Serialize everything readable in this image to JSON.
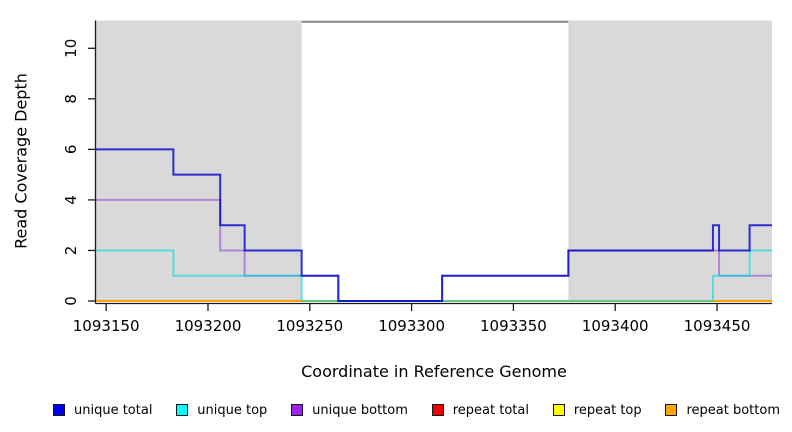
{
  "chart_data": {
    "type": "line",
    "step_interpolation": true,
    "title": "",
    "xlabel": "Coordinate in Reference Genome",
    "ylabel": "Read Coverage Depth",
    "xlim": [
      1093145,
      1093477
    ],
    "ylim": [
      0,
      11.1
    ],
    "xticks": [
      1093150,
      1093200,
      1093250,
      1093300,
      1093350,
      1093400,
      1093450
    ],
    "yticks": [
      0,
      2,
      4,
      6,
      8,
      10
    ],
    "grid": false,
    "legend_position": "bottom",
    "plot_background": "#ffffff",
    "shaded_regions": [
      {
        "name": "left-gray-region",
        "x0": 1093145,
        "x1": 1093246,
        "color": "#d9d9d9"
      },
      {
        "name": "right-gray-region",
        "x0": 1093377,
        "x1": 1093477,
        "color": "#d9d9d9"
      }
    ],
    "top_boundary_line": {
      "x0": 1093246,
      "x1": 1093377,
      "y": 11.05,
      "color": "#8a8a8a"
    },
    "series": [
      {
        "name": "repeat total",
        "line_color": "#dd0000",
        "legend_color": "#ee0000",
        "opacity": 1,
        "step": [
          [
            1093145,
            0
          ],
          [
            1093477,
            0
          ]
        ]
      },
      {
        "name": "repeat top",
        "line_color": "#ffff00",
        "legend_color": "#ffff00",
        "opacity": 1,
        "step": [
          [
            1093145,
            0
          ],
          [
            1093477,
            0
          ]
        ]
      },
      {
        "name": "repeat bottom",
        "line_color": "#ff9f00",
        "legend_color": "#ffa500",
        "opacity": 1,
        "step": [
          [
            1093145,
            0
          ],
          [
            1093477,
            0
          ]
        ]
      },
      {
        "name": "unique bottom",
        "line_color": "#7722cc",
        "legend_color": "#a020f0",
        "opacity": 0.45,
        "step": [
          [
            1093145,
            4
          ],
          [
            1093206,
            2
          ],
          [
            1093218,
            1
          ],
          [
            1093264,
            0
          ],
          [
            1093315,
            1
          ],
          [
            1093377,
            2
          ],
          [
            1093451,
            1
          ],
          [
            1093477,
            1
          ]
        ]
      },
      {
        "name": "unique top",
        "line_color": "#00dddd",
        "legend_color": "#00ffff",
        "opacity": 0.6,
        "step": [
          [
            1093145,
            2
          ],
          [
            1093183,
            1
          ],
          [
            1093246,
            0
          ],
          [
            1093448,
            1
          ],
          [
            1093466,
            2
          ],
          [
            1093477,
            2
          ]
        ]
      },
      {
        "name": "unique total",
        "line_color": "#0000cc",
        "legend_color": "#0000ee",
        "opacity": 0.8,
        "step": [
          [
            1093145,
            6
          ],
          [
            1093183,
            5
          ],
          [
            1093206,
            3
          ],
          [
            1093218,
            2
          ],
          [
            1093246,
            1
          ],
          [
            1093264,
            0
          ],
          [
            1093315,
            1
          ],
          [
            1093377,
            2
          ],
          [
            1093448,
            3
          ],
          [
            1093451,
            2
          ],
          [
            1093466,
            3
          ],
          [
            1093477,
            3
          ]
        ]
      }
    ],
    "legend_order": [
      "unique total",
      "unique top",
      "unique bottom",
      "repeat total",
      "repeat top",
      "repeat bottom"
    ]
  }
}
